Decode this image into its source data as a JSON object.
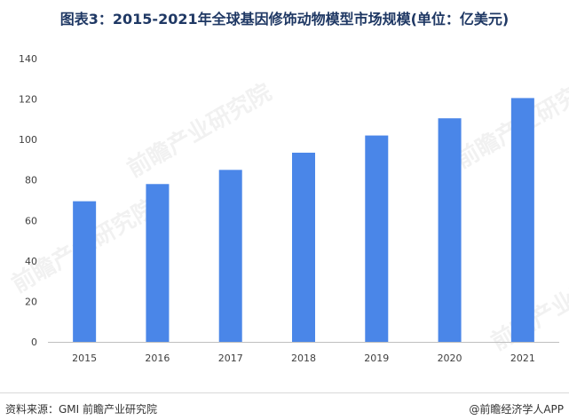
{
  "title": "图表3：2015-2021年全球基因修饰动物模型市场规模(单位：亿美元)",
  "watermark_text": "前瞻产业研究院",
  "footer": {
    "source": "资料来源：GMI 前瞻产业研究院",
    "credit": "@前瞻经济学人APP"
  },
  "chart_data": {
    "type": "bar",
    "title": "图表3：2015-2021年全球基因修饰动物模型市场规模(单位：亿美元)",
    "categories": [
      "2015",
      "2016",
      "2017",
      "2018",
      "2019",
      "2020",
      "2021"
    ],
    "values": [
      69.5,
      78,
      85,
      93.5,
      102,
      110.5,
      120.5
    ],
    "ylim": [
      0,
      140
    ],
    "yticks": [
      0,
      20,
      40,
      60,
      80,
      100,
      120,
      140
    ],
    "grid": false,
    "bar_color": "#4a86e8",
    "xlabel": "",
    "ylabel": ""
  }
}
